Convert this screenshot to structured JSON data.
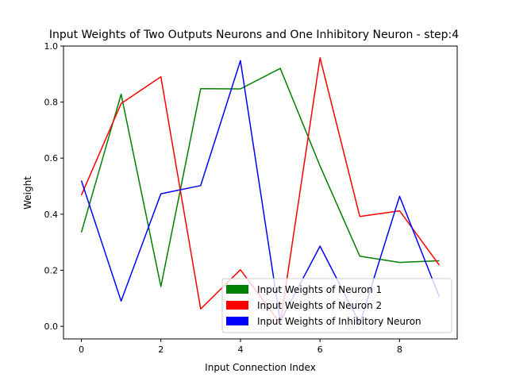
{
  "chart_data": {
    "type": "line",
    "title": "Input Weights of Two Outputs Neurons and One Inhibitory Neuron - step:4",
    "xlabel": "Input Connection Index",
    "ylabel": "Weight",
    "xlim": [
      -0.45,
      9.45
    ],
    "ylim": [
      -0.045,
      1.0
    ],
    "x": [
      0,
      1,
      2,
      3,
      4,
      5,
      6,
      7,
      8,
      9
    ],
    "xticks": [
      0,
      2,
      4,
      6,
      8
    ],
    "xtick_labels": [
      "0",
      "2",
      "4",
      "6",
      "8"
    ],
    "yticks": [
      0.0,
      0.2,
      0.4,
      0.6,
      0.8,
      1.0
    ],
    "ytick_labels": [
      "0.0",
      "0.2",
      "0.4",
      "0.6",
      "0.8",
      "1.0"
    ],
    "grid": false,
    "legend_position": "lower-right",
    "series": [
      {
        "name": "Input Weights of Neuron 1",
        "color": "#008000",
        "values": [
          0.335,
          0.828,
          0.142,
          0.848,
          0.847,
          0.92,
          0.572,
          0.25,
          0.228,
          0.234
        ]
      },
      {
        "name": "Input Weights of Neuron 2",
        "color": "#ff0000",
        "values": [
          0.468,
          0.795,
          0.89,
          0.062,
          0.202,
          0.01,
          0.958,
          0.392,
          0.412,
          0.218
        ]
      },
      {
        "name": "Input Weights of Inhibitory Neuron",
        "color": "#0000ff",
        "values": [
          0.52,
          0.09,
          0.473,
          0.502,
          0.948,
          0.018,
          0.286,
          0.01,
          0.464,
          0.105
        ]
      }
    ]
  }
}
